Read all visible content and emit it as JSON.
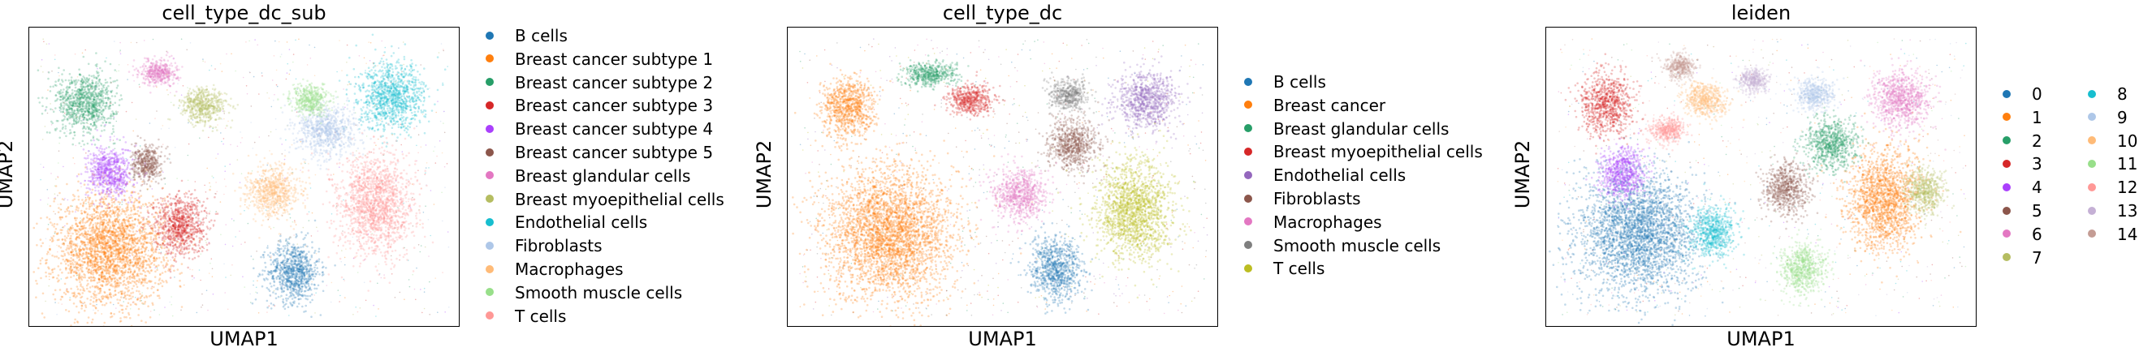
{
  "chart_data": [
    {
      "type": "scatter",
      "title": "cell_type_dc_sub",
      "xlabel": "UMAP1",
      "ylabel": "UMAP2",
      "legend_location": "right",
      "categories": [
        {
          "name": "B cells",
          "color": "#1f77b4"
        },
        {
          "name": "Breast cancer subtype 1",
          "color": "#ff7f0e"
        },
        {
          "name": "Breast cancer subtype 2",
          "color": "#279e68"
        },
        {
          "name": "Breast cancer subtype 3",
          "color": "#d62728"
        },
        {
          "name": "Breast cancer subtype 4",
          "color": "#aa40fc"
        },
        {
          "name": "Breast cancer subtype 5",
          "color": "#8c564b"
        },
        {
          "name": "Breast glandular cells",
          "color": "#e377c2"
        },
        {
          "name": "Breast myoepithelial cells",
          "color": "#b5bd61"
        },
        {
          "name": "Endothelial cells",
          "color": "#17becf"
        },
        {
          "name": "Fibroblasts",
          "color": "#aec7e8"
        },
        {
          "name": "Macrophages",
          "color": "#ffbb78"
        },
        {
          "name": "Smooth muscle cells",
          "color": "#98df8a"
        },
        {
          "name": "T cells",
          "color": "#ff9896"
        }
      ],
      "clusters": [
        {
          "cat": 0,
          "x": 0.62,
          "y": 0.16,
          "rx": 0.07,
          "ry": 0.12
        },
        {
          "cat": 1,
          "x": 0.17,
          "y": 0.24,
          "rx": 0.15,
          "ry": 0.22
        },
        {
          "cat": 2,
          "x": 0.11,
          "y": 0.77,
          "rx": 0.08,
          "ry": 0.12
        },
        {
          "cat": 3,
          "x": 0.34,
          "y": 0.33,
          "rx": 0.07,
          "ry": 0.12
        },
        {
          "cat": 4,
          "x": 0.17,
          "y": 0.52,
          "rx": 0.06,
          "ry": 0.1
        },
        {
          "cat": 5,
          "x": 0.26,
          "y": 0.55,
          "rx": 0.04,
          "ry": 0.07
        },
        {
          "cat": 6,
          "x": 0.29,
          "y": 0.88,
          "rx": 0.05,
          "ry": 0.05
        },
        {
          "cat": 7,
          "x": 0.4,
          "y": 0.76,
          "rx": 0.06,
          "ry": 0.07
        },
        {
          "cat": 8,
          "x": 0.86,
          "y": 0.79,
          "rx": 0.09,
          "ry": 0.13
        },
        {
          "cat": 9,
          "x": 0.7,
          "y": 0.67,
          "rx": 0.08,
          "ry": 0.1
        },
        {
          "cat": 10,
          "x": 0.57,
          "y": 0.45,
          "rx": 0.07,
          "ry": 0.1
        },
        {
          "cat": 11,
          "x": 0.66,
          "y": 0.78,
          "rx": 0.05,
          "ry": 0.06
        },
        {
          "cat": 12,
          "x": 0.82,
          "y": 0.4,
          "rx": 0.1,
          "ry": 0.2
        }
      ]
    },
    {
      "type": "scatter",
      "title": "cell_type_dc",
      "xlabel": "UMAP1",
      "ylabel": "UMAP2",
      "legend_location": "right",
      "categories": [
        {
          "name": "B cells",
          "color": "#1f77b4"
        },
        {
          "name": "Breast cancer",
          "color": "#ff7f0e"
        },
        {
          "name": "Breast glandular cells",
          "color": "#279e68"
        },
        {
          "name": "Breast myoepithelial cells",
          "color": "#d62728"
        },
        {
          "name": "Endothelial cells",
          "color": "#9467bd"
        },
        {
          "name": "Fibroblasts",
          "color": "#8c564b"
        },
        {
          "name": "Macrophages",
          "color": "#e377c2"
        },
        {
          "name": "Smooth muscle cells",
          "color": "#7f7f7f"
        },
        {
          "name": "T cells",
          "color": "#bcbd22"
        }
      ],
      "clusters": [
        {
          "cat": 0,
          "x": 0.63,
          "y": 0.17,
          "rx": 0.07,
          "ry": 0.12
        },
        {
          "cat": 1,
          "x": 0.22,
          "y": 0.3,
          "rx": 0.17,
          "ry": 0.26
        },
        {
          "cat": 1,
          "x": 0.12,
          "y": 0.75,
          "rx": 0.07,
          "ry": 0.12
        },
        {
          "cat": 2,
          "x": 0.32,
          "y": 0.87,
          "rx": 0.07,
          "ry": 0.05
        },
        {
          "cat": 3,
          "x": 0.42,
          "y": 0.78,
          "rx": 0.06,
          "ry": 0.06
        },
        {
          "cat": 4,
          "x": 0.85,
          "y": 0.78,
          "rx": 0.08,
          "ry": 0.11
        },
        {
          "cat": 5,
          "x": 0.67,
          "y": 0.62,
          "rx": 0.07,
          "ry": 0.1
        },
        {
          "cat": 6,
          "x": 0.54,
          "y": 0.44,
          "rx": 0.07,
          "ry": 0.1
        },
        {
          "cat": 7,
          "x": 0.66,
          "y": 0.8,
          "rx": 0.05,
          "ry": 0.06
        },
        {
          "cat": 8,
          "x": 0.82,
          "y": 0.38,
          "rx": 0.1,
          "ry": 0.2
        }
      ]
    },
    {
      "type": "scatter",
      "title": "leiden",
      "xlabel": "UMAP1",
      "ylabel": "UMAP2",
      "legend_location": "right",
      "categories": [
        {
          "name": "0",
          "color": "#1f77b4"
        },
        {
          "name": "1",
          "color": "#ff7f0e"
        },
        {
          "name": "2",
          "color": "#279e68"
        },
        {
          "name": "3",
          "color": "#d62728"
        },
        {
          "name": "4",
          "color": "#aa40fc"
        },
        {
          "name": "5",
          "color": "#8c564b"
        },
        {
          "name": "6",
          "color": "#e377c2"
        },
        {
          "name": "7",
          "color": "#b5bd61"
        },
        {
          "name": "8",
          "color": "#17becf"
        },
        {
          "name": "9",
          "color": "#aec7e8"
        },
        {
          "name": "10",
          "color": "#ffbb78"
        },
        {
          "name": "11",
          "color": "#98df8a"
        },
        {
          "name": "12",
          "color": "#ff9896"
        },
        {
          "name": "13",
          "color": "#c5b0d5"
        },
        {
          "name": "14",
          "color": "#c49c94"
        }
      ],
      "clusters": [
        {
          "cat": 0,
          "x": 0.2,
          "y": 0.3,
          "rx": 0.16,
          "ry": 0.24
        },
        {
          "cat": 1,
          "x": 0.8,
          "y": 0.42,
          "rx": 0.1,
          "ry": 0.2
        },
        {
          "cat": 2,
          "x": 0.67,
          "y": 0.62,
          "rx": 0.07,
          "ry": 0.1
        },
        {
          "cat": 3,
          "x": 0.12,
          "y": 0.77,
          "rx": 0.07,
          "ry": 0.12
        },
        {
          "cat": 4,
          "x": 0.16,
          "y": 0.52,
          "rx": 0.06,
          "ry": 0.1
        },
        {
          "cat": 5,
          "x": 0.56,
          "y": 0.46,
          "rx": 0.06,
          "ry": 0.1
        },
        {
          "cat": 6,
          "x": 0.84,
          "y": 0.78,
          "rx": 0.08,
          "ry": 0.11
        },
        {
          "cat": 7,
          "x": 0.9,
          "y": 0.45,
          "rx": 0.05,
          "ry": 0.08
        },
        {
          "cat": 8,
          "x": 0.38,
          "y": 0.3,
          "rx": 0.06,
          "ry": 0.1
        },
        {
          "cat": 9,
          "x": 0.63,
          "y": 0.8,
          "rx": 0.05,
          "ry": 0.06
        },
        {
          "cat": 10,
          "x": 0.36,
          "y": 0.78,
          "rx": 0.06,
          "ry": 0.07
        },
        {
          "cat": 11,
          "x": 0.6,
          "y": 0.17,
          "rx": 0.06,
          "ry": 0.1
        },
        {
          "cat": 12,
          "x": 0.27,
          "y": 0.67,
          "rx": 0.05,
          "ry": 0.05
        },
        {
          "cat": 13,
          "x": 0.48,
          "y": 0.85,
          "rx": 0.04,
          "ry": 0.05
        },
        {
          "cat": 14,
          "x": 0.3,
          "y": 0.9,
          "rx": 0.04,
          "ry": 0.05
        }
      ]
    }
  ]
}
